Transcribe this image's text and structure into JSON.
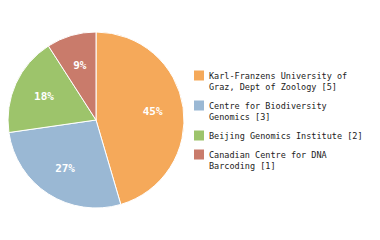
{
  "chart_data": {
    "type": "pie",
    "categories": [
      "Karl-Franzens University of\nGraz, Dept of Zoology [5]",
      "Centre for Biodiversity\nGenomics [3]",
      "Beijing Genomics Institute [2]",
      "Canadian Centre for DNA\nBarcoding [1]"
    ],
    "values": [
      45,
      27,
      18,
      9
    ],
    "value_labels": [
      "45%",
      "27%",
      "18%",
      "9%"
    ],
    "colors": [
      "#F5A95A",
      "#9AB8D4",
      "#9DC46B",
      "#C97B6B"
    ],
    "data_labels": true,
    "legend": "right"
  }
}
